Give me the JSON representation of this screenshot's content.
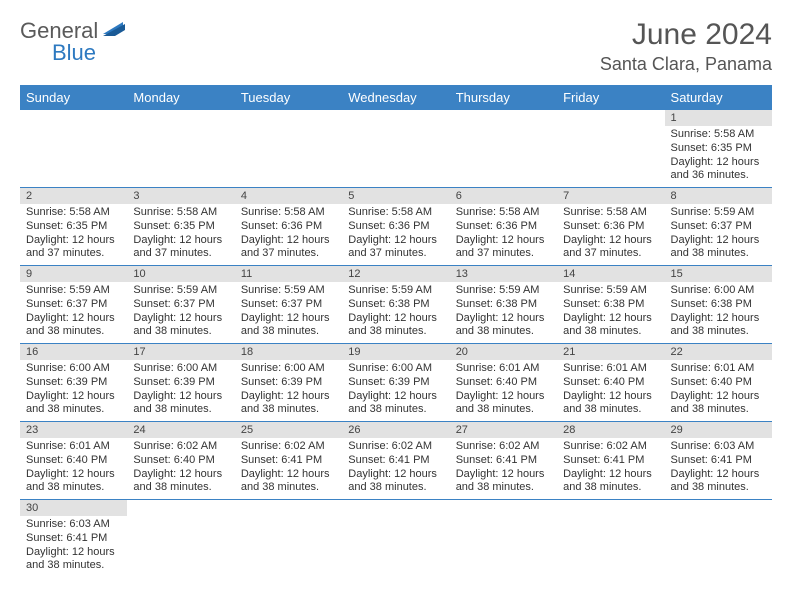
{
  "logo": {
    "text1": "General",
    "text2": "Blue",
    "flag_color": "#2d79c0",
    "text1_color": "#5a5a5a"
  },
  "title": "June 2024",
  "location": "Santa Clara, Panama",
  "colors": {
    "header_bg": "#3b82c4",
    "header_text": "#ffffff",
    "daynum_bg": "#e2e2e2",
    "row_border": "#3b82c4",
    "body_text": "#333333",
    "title_text": "#555555"
  },
  "day_headers": [
    "Sunday",
    "Monday",
    "Tuesday",
    "Wednesday",
    "Thursday",
    "Friday",
    "Saturday"
  ],
  "weeks": [
    [
      null,
      null,
      null,
      null,
      null,
      null,
      {
        "n": "1",
        "sunrise": "5:58 AM",
        "sunset": "6:35 PM",
        "daylight": "12 hours and 36 minutes."
      }
    ],
    [
      {
        "n": "2",
        "sunrise": "5:58 AM",
        "sunset": "6:35 PM",
        "daylight": "12 hours and 37 minutes."
      },
      {
        "n": "3",
        "sunrise": "5:58 AM",
        "sunset": "6:35 PM",
        "daylight": "12 hours and 37 minutes."
      },
      {
        "n": "4",
        "sunrise": "5:58 AM",
        "sunset": "6:36 PM",
        "daylight": "12 hours and 37 minutes."
      },
      {
        "n": "5",
        "sunrise": "5:58 AM",
        "sunset": "6:36 PM",
        "daylight": "12 hours and 37 minutes."
      },
      {
        "n": "6",
        "sunrise": "5:58 AM",
        "sunset": "6:36 PM",
        "daylight": "12 hours and 37 minutes."
      },
      {
        "n": "7",
        "sunrise": "5:58 AM",
        "sunset": "6:36 PM",
        "daylight": "12 hours and 37 minutes."
      },
      {
        "n": "8",
        "sunrise": "5:59 AM",
        "sunset": "6:37 PM",
        "daylight": "12 hours and 38 minutes."
      }
    ],
    [
      {
        "n": "9",
        "sunrise": "5:59 AM",
        "sunset": "6:37 PM",
        "daylight": "12 hours and 38 minutes."
      },
      {
        "n": "10",
        "sunrise": "5:59 AM",
        "sunset": "6:37 PM",
        "daylight": "12 hours and 38 minutes."
      },
      {
        "n": "11",
        "sunrise": "5:59 AM",
        "sunset": "6:37 PM",
        "daylight": "12 hours and 38 minutes."
      },
      {
        "n": "12",
        "sunrise": "5:59 AM",
        "sunset": "6:38 PM",
        "daylight": "12 hours and 38 minutes."
      },
      {
        "n": "13",
        "sunrise": "5:59 AM",
        "sunset": "6:38 PM",
        "daylight": "12 hours and 38 minutes."
      },
      {
        "n": "14",
        "sunrise": "5:59 AM",
        "sunset": "6:38 PM",
        "daylight": "12 hours and 38 minutes."
      },
      {
        "n": "15",
        "sunrise": "6:00 AM",
        "sunset": "6:38 PM",
        "daylight": "12 hours and 38 minutes."
      }
    ],
    [
      {
        "n": "16",
        "sunrise": "6:00 AM",
        "sunset": "6:39 PM",
        "daylight": "12 hours and 38 minutes."
      },
      {
        "n": "17",
        "sunrise": "6:00 AM",
        "sunset": "6:39 PM",
        "daylight": "12 hours and 38 minutes."
      },
      {
        "n": "18",
        "sunrise": "6:00 AM",
        "sunset": "6:39 PM",
        "daylight": "12 hours and 38 minutes."
      },
      {
        "n": "19",
        "sunrise": "6:00 AM",
        "sunset": "6:39 PM",
        "daylight": "12 hours and 38 minutes."
      },
      {
        "n": "20",
        "sunrise": "6:01 AM",
        "sunset": "6:40 PM",
        "daylight": "12 hours and 38 minutes."
      },
      {
        "n": "21",
        "sunrise": "6:01 AM",
        "sunset": "6:40 PM",
        "daylight": "12 hours and 38 minutes."
      },
      {
        "n": "22",
        "sunrise": "6:01 AM",
        "sunset": "6:40 PM",
        "daylight": "12 hours and 38 minutes."
      }
    ],
    [
      {
        "n": "23",
        "sunrise": "6:01 AM",
        "sunset": "6:40 PM",
        "daylight": "12 hours and 38 minutes."
      },
      {
        "n": "24",
        "sunrise": "6:02 AM",
        "sunset": "6:40 PM",
        "daylight": "12 hours and 38 minutes."
      },
      {
        "n": "25",
        "sunrise": "6:02 AM",
        "sunset": "6:41 PM",
        "daylight": "12 hours and 38 minutes."
      },
      {
        "n": "26",
        "sunrise": "6:02 AM",
        "sunset": "6:41 PM",
        "daylight": "12 hours and 38 minutes."
      },
      {
        "n": "27",
        "sunrise": "6:02 AM",
        "sunset": "6:41 PM",
        "daylight": "12 hours and 38 minutes."
      },
      {
        "n": "28",
        "sunrise": "6:02 AM",
        "sunset": "6:41 PM",
        "daylight": "12 hours and 38 minutes."
      },
      {
        "n": "29",
        "sunrise": "6:03 AM",
        "sunset": "6:41 PM",
        "daylight": "12 hours and 38 minutes."
      }
    ],
    [
      {
        "n": "30",
        "sunrise": "6:03 AM",
        "sunset": "6:41 PM",
        "daylight": "12 hours and 38 minutes."
      },
      null,
      null,
      null,
      null,
      null,
      null
    ]
  ],
  "labels": {
    "sunrise": "Sunrise: ",
    "sunset": "Sunset: ",
    "daylight": "Daylight: "
  }
}
